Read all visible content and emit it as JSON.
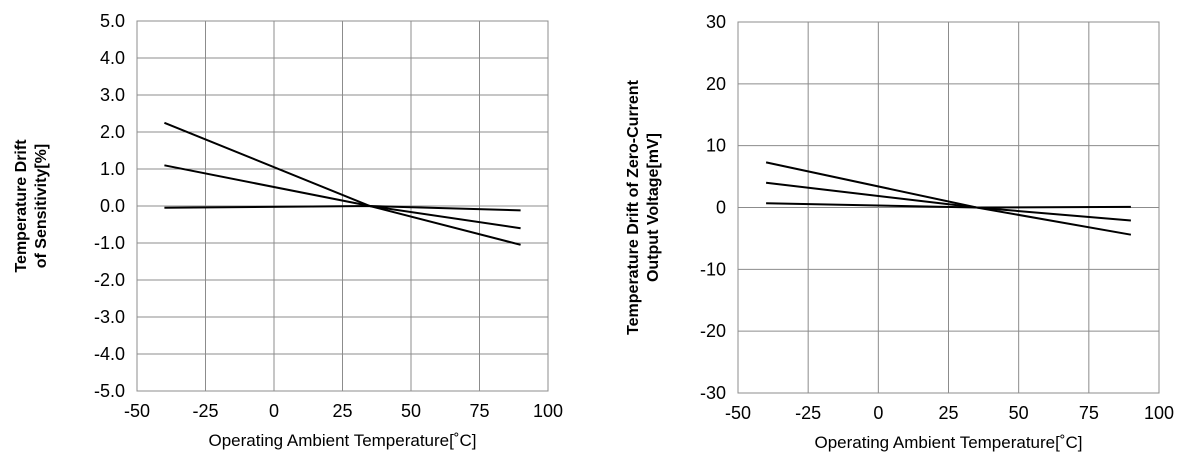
{
  "chart_data": [
    {
      "type": "line",
      "xlabel": "Operating Ambient Temperature[˚C]",
      "ylabel": [
        "Temperature Drift",
        "of Sensitivity[%]"
      ],
      "xlim": [
        -50,
        100
      ],
      "ylim": [
        -5.0,
        5.0
      ],
      "xticks": [
        -50,
        -25,
        0,
        25,
        50,
        75,
        100
      ],
      "xtick_labels": [
        "-50",
        "-25",
        "0",
        "25",
        "50",
        "75",
        "100"
      ],
      "yticks": [
        -5,
        -4,
        -3,
        -2,
        -1,
        0,
        1,
        2,
        3,
        4,
        5
      ],
      "ytick_labels": [
        "-5.0",
        "-4.0",
        "-3.0",
        "-2.0",
        "-1.0",
        "0.0",
        "1.0",
        "2.0",
        "3.0",
        "4.0",
        "5.0"
      ],
      "grid": true,
      "legend": "none",
      "line_color": "#000000",
      "series": [
        {
          "x": [
            -40,
            35,
            90
          ],
          "y": [
            2.25,
            0.0,
            -1.05
          ]
        },
        {
          "x": [
            -40,
            35,
            90
          ],
          "y": [
            1.1,
            0.0,
            -0.6
          ]
        },
        {
          "x": [
            -40,
            35,
            90
          ],
          "y": [
            -0.05,
            0.0,
            -0.12
          ]
        }
      ]
    },
    {
      "type": "line",
      "xlabel": "Operating Ambient Temperature[˚C]",
      "ylabel": [
        "Temperature Drift of Zero-Current",
        "Output Voltage[mV]"
      ],
      "xlim": [
        -50,
        100
      ],
      "ylim": [
        -30,
        30
      ],
      "xticks": [
        -50,
        -25,
        0,
        25,
        50,
        75,
        100
      ],
      "xtick_labels": [
        "-50",
        "-25",
        "0",
        "25",
        "50",
        "75",
        "100"
      ],
      "yticks": [
        -30,
        -20,
        -10,
        0,
        10,
        20,
        30
      ],
      "ytick_labels": [
        "-30",
        "-20",
        "-10",
        "0",
        "10",
        "20",
        "30"
      ],
      "grid": true,
      "legend": "none",
      "line_color": "#000000",
      "series": [
        {
          "x": [
            -40,
            35,
            90
          ],
          "y": [
            7.3,
            0.0,
            -4.4
          ]
        },
        {
          "x": [
            -40,
            35,
            90
          ],
          "y": [
            4.0,
            0.0,
            -2.1
          ]
        },
        {
          "x": [
            -40,
            35,
            90
          ],
          "y": [
            0.7,
            0.0,
            0.1
          ]
        }
      ]
    }
  ]
}
